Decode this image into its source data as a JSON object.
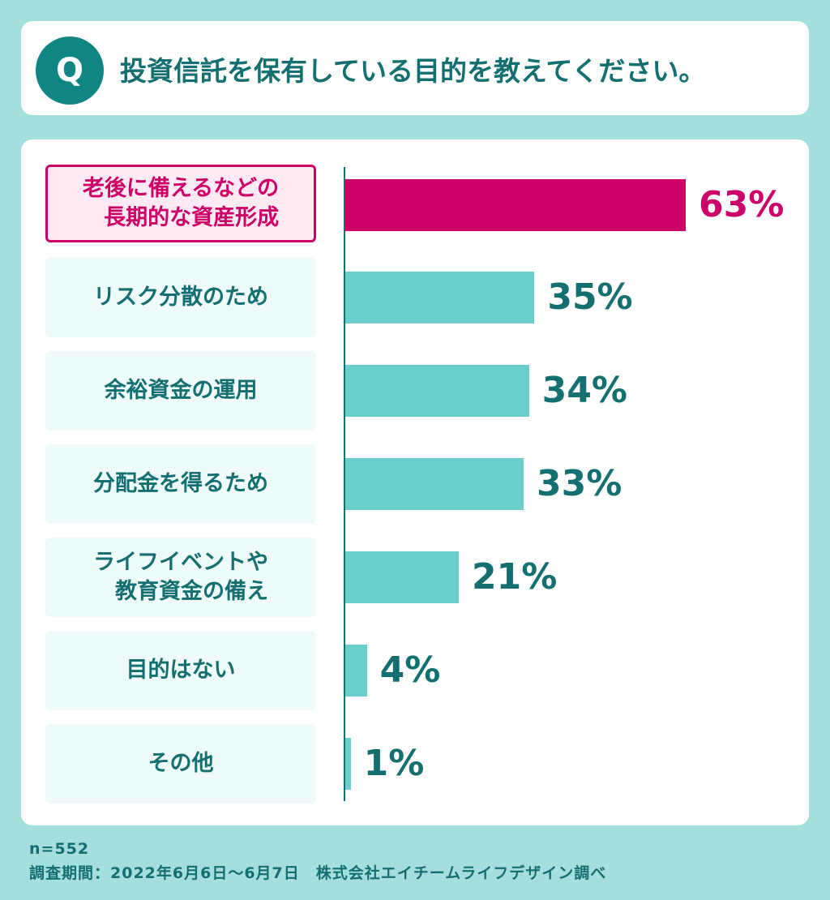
{
  "question": {
    "badge": "Q",
    "text": "投資信託を保有している目的を教えてください。"
  },
  "chart_data": {
    "type": "bar",
    "orientation": "horizontal",
    "categories": [
      "老後に備えるなどの\n長期的な資産形成",
      "リスク分散のため",
      "余裕資金の運用",
      "分配金を得るため",
      "ライフイベントや\n教育資金の備え",
      "目的はない",
      "その他"
    ],
    "values": [
      63,
      35,
      34,
      33,
      21,
      4,
      1
    ],
    "value_labels": [
      "63%",
      "35%",
      "34%",
      "33%",
      "21%",
      "4%",
      "1%"
    ],
    "highlight_index": 0,
    "xlim": [
      0,
      100
    ],
    "colors": {
      "highlight": "#cc0066",
      "bar": "#6acfcc",
      "text": "#146f70"
    }
  },
  "footer": {
    "n": "n=552",
    "source": "調査期間：2022年6月6日～6月7日　株式会社エイチームライフデザイン調べ"
  }
}
